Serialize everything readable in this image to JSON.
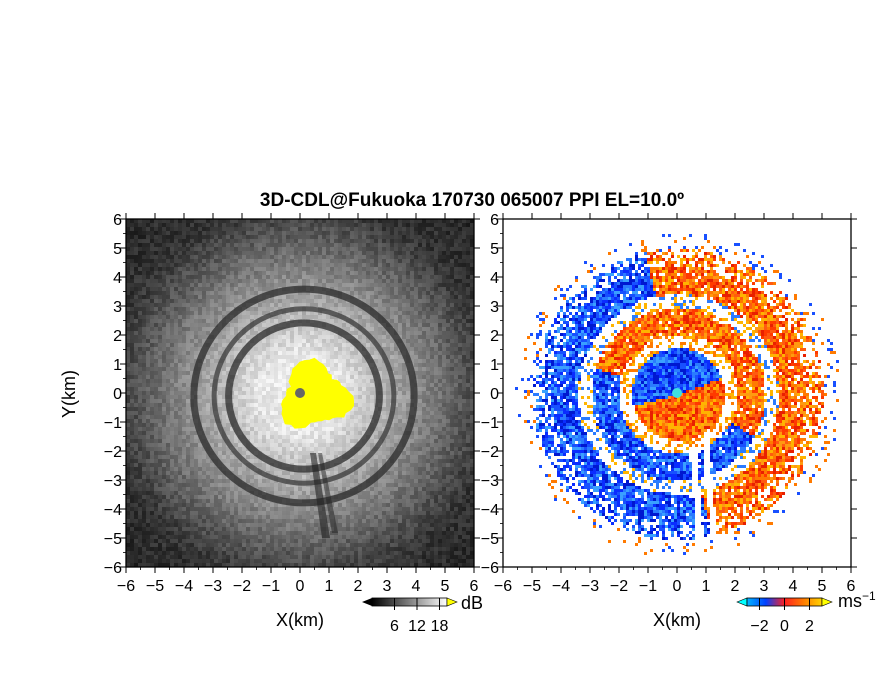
{
  "title": "3D-CDL@Fukuoka 170730 065007 PPI EL=10.0º",
  "chart_data": [
    {
      "type": "heatmap",
      "name": "reflectivity panel",
      "xlabel": "X(km)",
      "ylabel": "Y(km)",
      "xlim": [
        -6,
        6
      ],
      "ylim": [
        -6,
        6
      ],
      "xticks": [
        "−6",
        "−5",
        "−4",
        "−3",
        "−2",
        "−1",
        "0",
        "1",
        "2",
        "3",
        "4",
        "5",
        "6"
      ],
      "yticks": [
        "6",
        "5",
        "4",
        "3",
        "2",
        "1",
        "0",
        "−1",
        "−2",
        "−3",
        "−4",
        "−5",
        "−6"
      ],
      "colormap": "grayscale",
      "saturation_color": "#ffff00",
      "saturated_region": {
        "center": [
          0.5,
          -0.1
        ],
        "radius_km": 1.3
      },
      "rings_km": [
        2.6,
        3.1,
        3.8
      ],
      "colorbar": {
        "unit": "dB",
        "ticks": [
          "6",
          "12",
          "18"
        ],
        "tick_values": [
          6,
          12,
          18
        ],
        "range": [
          0,
          20
        ],
        "over_color": "#ffff00"
      }
    },
    {
      "type": "heatmap",
      "name": "doppler velocity panel",
      "xlabel": "X(km)",
      "ylabel": "",
      "xlim": [
        -6,
        6
      ],
      "ylim": [
        -6,
        6
      ],
      "xticks": [
        "−6",
        "−5",
        "−4",
        "−3",
        "−2",
        "−1",
        "0",
        "1",
        "2",
        "3",
        "4",
        "5",
        "6"
      ],
      "yticks": [
        "6",
        "5",
        "4",
        "3",
        "2",
        "1",
        "0",
        "−1",
        "−2",
        "−3",
        "−4",
        "−5",
        "−6"
      ],
      "colormap": "blue-red diverging",
      "negative_color": "#1040ff",
      "positive_color": "#ff4000",
      "colorbar": {
        "unit": "ms",
        "unit_exponent": "−1",
        "ticks": [
          "−2",
          "0",
          "2"
        ],
        "tick_values": [
          -2,
          0,
          2
        ],
        "range": [
          -3,
          3
        ],
        "under_color": "#00ffff",
        "over_color": "#ffff00"
      }
    }
  ]
}
